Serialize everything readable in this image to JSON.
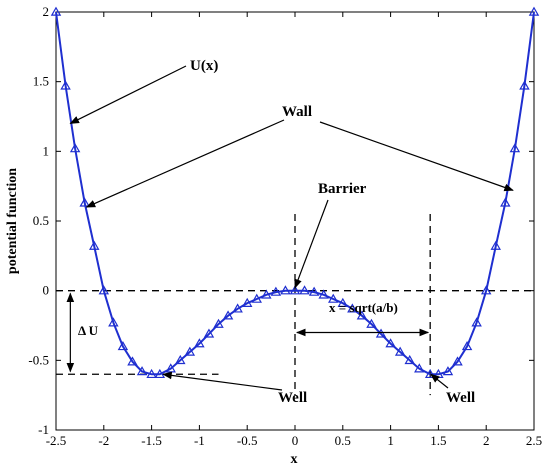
{
  "chart_data": {
    "type": "line",
    "xlabel": "x",
    "ylabel": "potential function",
    "xlim": [
      -2.5,
      2.5
    ],
    "ylim": [
      -1,
      2
    ],
    "xticks": [
      -2.5,
      -2,
      -1.5,
      -1,
      -0.5,
      0,
      0.5,
      1,
      1.5,
      2,
      2.5
    ],
    "xtick_labels": [
      "-2.5",
      "-2",
      "-1.5",
      "-1",
      "-0.5",
      "0",
      "0.5",
      "1",
      "1.5",
      "2",
      "2.5"
    ],
    "yticks": [
      -1,
      -0.5,
      0,
      0.5,
      1,
      1.5,
      2
    ],
    "ytick_labels": [
      "-1",
      "-0.5",
      "0",
      "0.5",
      "1",
      "1.5",
      "2"
    ],
    "grid": false,
    "series": [
      {
        "color": "#1f2fd0",
        "marker": "triangle",
        "x": [
          -2.5,
          -2.4,
          -2.3,
          -2.2,
          -2.1,
          -2.0,
          -1.9,
          -1.8,
          -1.7,
          -1.6,
          -1.5,
          -1.414,
          -1.3,
          -1.2,
          -1.1,
          -1.0,
          -0.9,
          -0.8,
          -0.7,
          -0.6,
          -0.5,
          -0.4,
          -0.3,
          -0.2,
          -0.1,
          0.0,
          0.1,
          0.2,
          0.3,
          0.4,
          0.5,
          0.6,
          0.7,
          0.8,
          0.9,
          1.0,
          1.1,
          1.2,
          1.3,
          1.414,
          1.5,
          1.6,
          1.7,
          1.8,
          1.9,
          2.0,
          2.1,
          2.2,
          2.3,
          2.4,
          2.5
        ],
        "y": [
          2.0,
          1.47,
          1.02,
          0.63,
          0.32,
          0.0,
          -0.23,
          -0.4,
          -0.51,
          -0.58,
          -0.6,
          -0.6,
          -0.56,
          -0.5,
          -0.44,
          -0.38,
          -0.31,
          -0.24,
          -0.18,
          -0.13,
          -0.09,
          -0.06,
          -0.03,
          -0.01,
          0.0,
          0.0,
          0.0,
          -0.01,
          -0.03,
          -0.06,
          -0.09,
          -0.13,
          -0.18,
          -0.24,
          -0.31,
          -0.38,
          -0.44,
          -0.5,
          -0.56,
          -0.6,
          -0.6,
          -0.58,
          -0.51,
          -0.4,
          -0.23,
          0.0,
          0.32,
          0.63,
          1.02,
          1.47,
          2.0
        ]
      }
    ],
    "annotations": {
      "ux": "U(x)",
      "wall": "Wall",
      "barrier": "Barrier",
      "well_left": "Well",
      "well_right": "Well",
      "delta_u": "Δ U",
      "sqrt": "x = sqrt(a/b)"
    }
  }
}
